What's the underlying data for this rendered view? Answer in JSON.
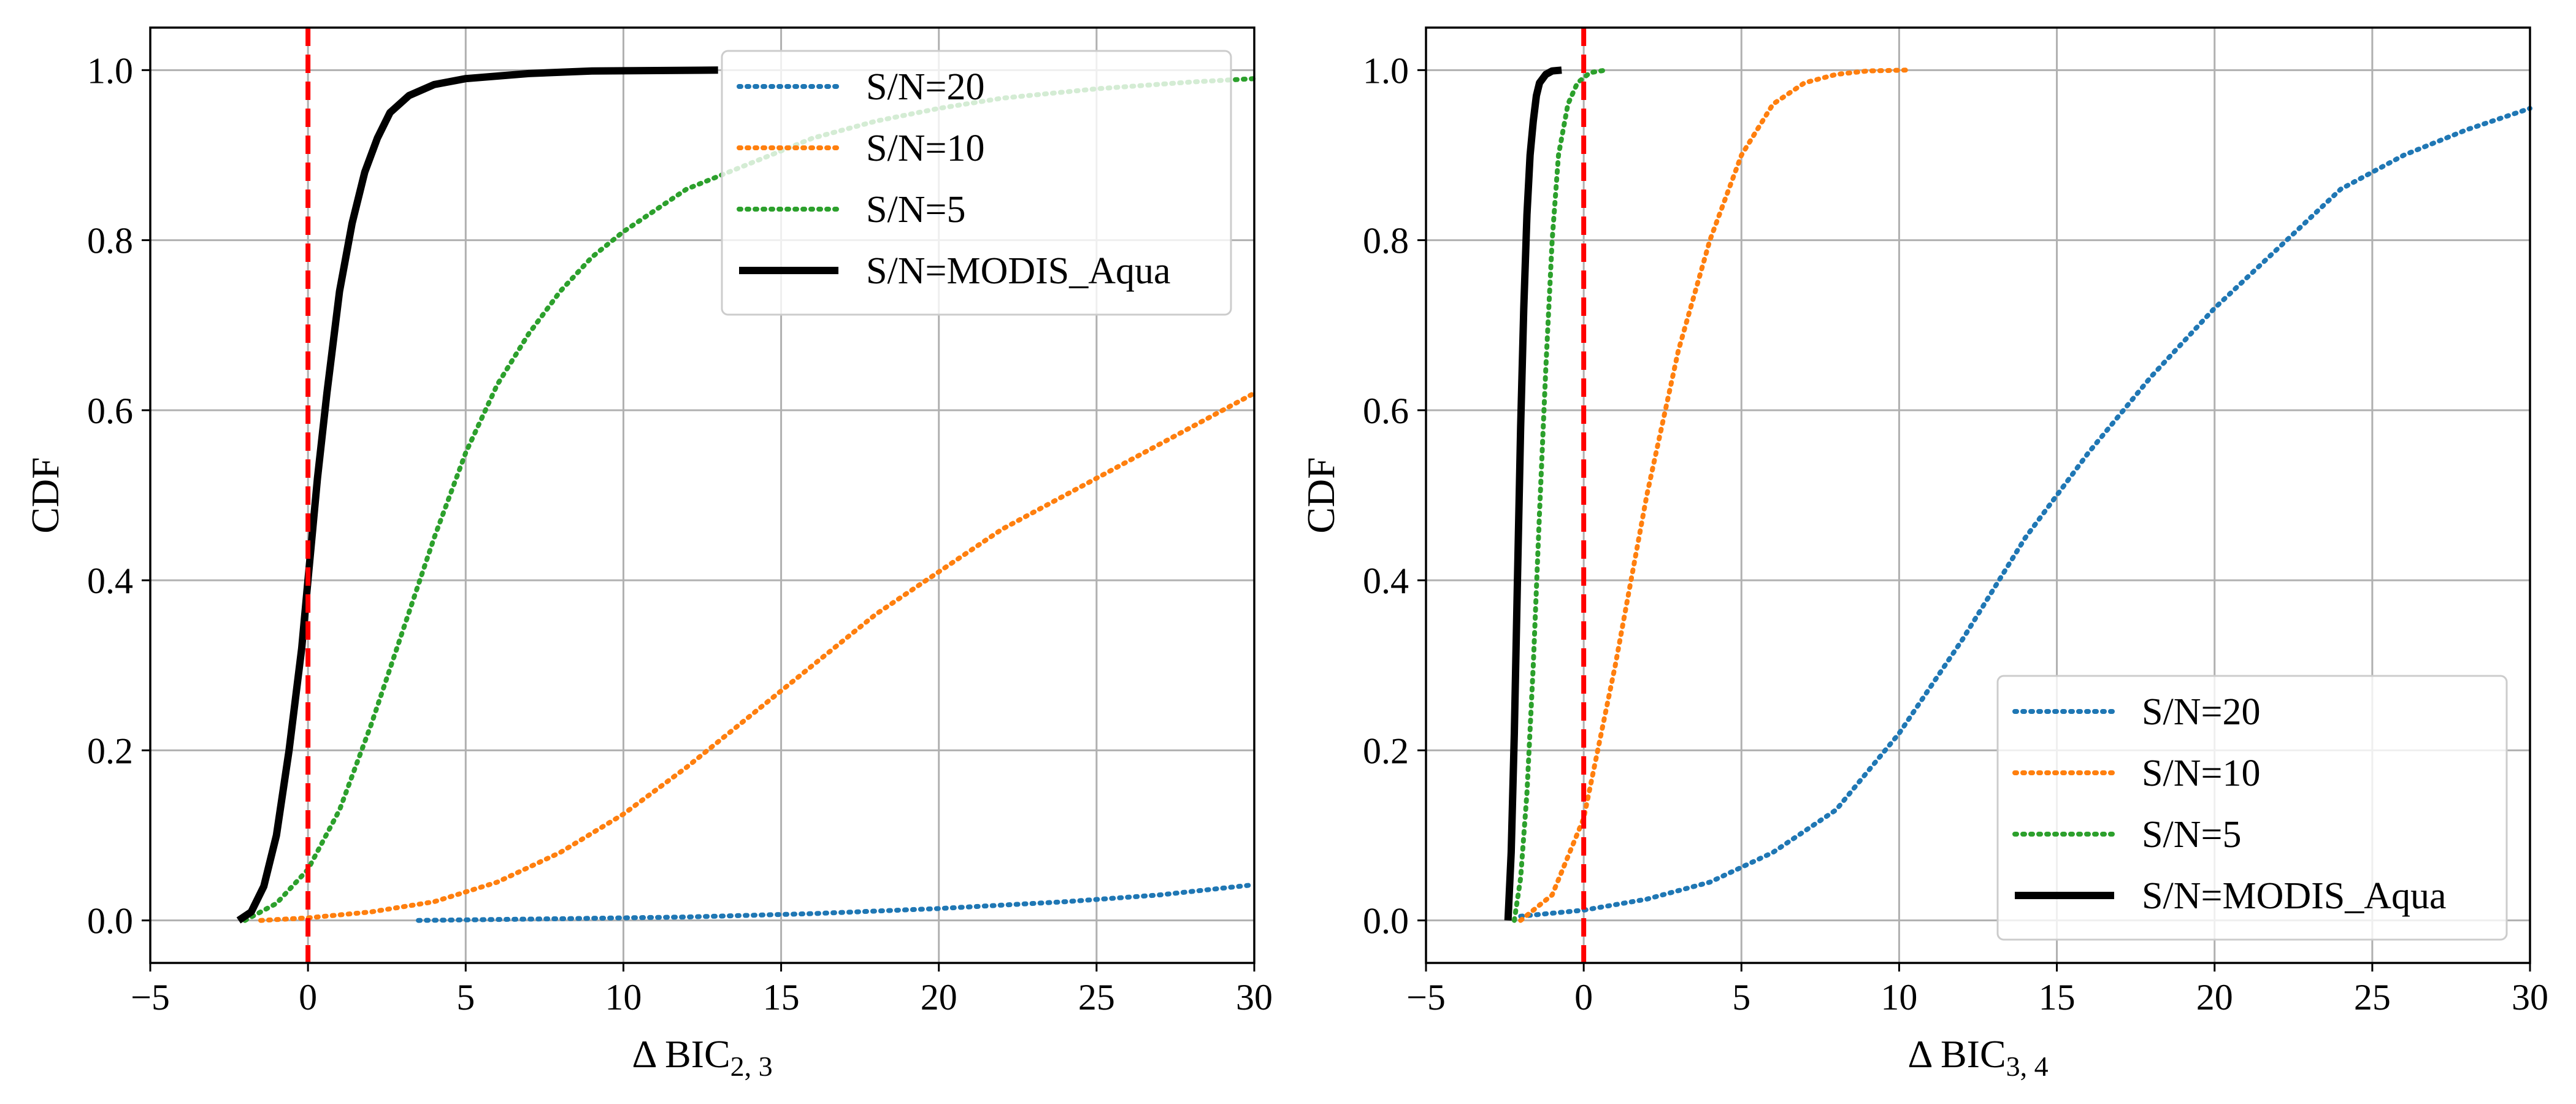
{
  "chart_data": [
    {
      "type": "line",
      "title": "",
      "xlabel_main": "Δ BIC",
      "xlabel_sub": "2, 3",
      "ylabel": "CDF",
      "xlim": [
        -5,
        30
      ],
      "ylim": [
        -0.05,
        1.05
      ],
      "xticks": [
        -5,
        0,
        5,
        10,
        15,
        20,
        25,
        30
      ],
      "yticks": [
        0.0,
        0.2,
        0.4,
        0.6,
        0.8,
        1.0
      ],
      "xtick_labels": [
        "−5",
        "0",
        "5",
        "10",
        "15",
        "20",
        "25",
        "30"
      ],
      "ytick_labels": [
        "0.0",
        "0.2",
        "0.4",
        "0.6",
        "0.8",
        "1.0"
      ],
      "grid": true,
      "legend_position": "top-right",
      "vline": {
        "x": 0,
        "color": "#ff0000",
        "style": "dashed"
      },
      "series": [
        {
          "name": "S/N=20",
          "color": "#1f77b4",
          "style": "dotted",
          "x": [
            3.5,
            8,
            12,
            16,
            20,
            24,
            27,
            30
          ],
          "y": [
            0.0,
            0.002,
            0.004,
            0.008,
            0.014,
            0.022,
            0.03,
            0.042
          ]
        },
        {
          "name": "S/N=10",
          "color": "#ff7f0e",
          "style": "dotted",
          "x": [
            -1.5,
            0,
            2,
            4,
            6,
            8,
            10,
            12,
            14,
            16,
            18,
            20,
            22,
            24,
            26,
            28,
            30
          ],
          "y": [
            0.0,
            0.003,
            0.01,
            0.022,
            0.045,
            0.08,
            0.125,
            0.18,
            0.24,
            0.3,
            0.36,
            0.41,
            0.46,
            0.5,
            0.54,
            0.58,
            0.62
          ]
        },
        {
          "name": "S/N=5",
          "color": "#2ca02c",
          "style": "dotted",
          "x": [
            -2,
            -1,
            0,
            1,
            2,
            3,
            4,
            5,
            6,
            7,
            8,
            9,
            10,
            12,
            14,
            16,
            18,
            20,
            22,
            25,
            28,
            30
          ],
          "y": [
            0.0,
            0.02,
            0.06,
            0.13,
            0.23,
            0.34,
            0.45,
            0.55,
            0.63,
            0.69,
            0.74,
            0.78,
            0.81,
            0.86,
            0.89,
            0.92,
            0.94,
            0.955,
            0.967,
            0.978,
            0.986,
            0.99
          ]
        },
        {
          "name": "S/N=MODIS_Aqua",
          "color": "#000000",
          "style": "solid",
          "x": [
            -2.2,
            -1.8,
            -1.4,
            -1.0,
            -0.6,
            -0.2,
            0.0,
            0.3,
            0.6,
            1.0,
            1.4,
            1.8,
            2.2,
            2.6,
            3.2,
            4.0,
            5.0,
            7.0,
            9.0,
            13.0
          ],
          "y": [
            0.0,
            0.01,
            0.04,
            0.1,
            0.2,
            0.32,
            0.4,
            0.52,
            0.62,
            0.74,
            0.82,
            0.88,
            0.92,
            0.95,
            0.97,
            0.983,
            0.99,
            0.996,
            0.999,
            1.0
          ]
        }
      ]
    },
    {
      "type": "line",
      "title": "",
      "xlabel_main": "Δ BIC",
      "xlabel_sub": "3, 4",
      "ylabel": "CDF",
      "xlim": [
        -5,
        30
      ],
      "ylim": [
        -0.05,
        1.05
      ],
      "xticks": [
        -5,
        0,
        5,
        10,
        15,
        20,
        25,
        30
      ],
      "yticks": [
        0.0,
        0.2,
        0.4,
        0.6,
        0.8,
        1.0
      ],
      "xtick_labels": [
        "−5",
        "0",
        "5",
        "10",
        "15",
        "20",
        "25",
        "30"
      ],
      "ytick_labels": [
        "0.0",
        "0.2",
        "0.4",
        "0.6",
        "0.8",
        "1.0"
      ],
      "grid": true,
      "legend_position": "bottom-right",
      "vline": {
        "x": 0,
        "color": "#ff0000",
        "style": "dashed"
      },
      "series": [
        {
          "name": "S/N=20",
          "color": "#1f77b4",
          "style": "dotted",
          "x": [
            -2,
            0,
            2,
            4,
            6,
            8,
            10,
            12,
            14,
            16,
            18,
            20,
            22,
            24,
            26,
            28,
            30
          ],
          "y": [
            0.005,
            0.012,
            0.025,
            0.045,
            0.08,
            0.13,
            0.22,
            0.33,
            0.45,
            0.55,
            0.64,
            0.72,
            0.79,
            0.86,
            0.9,
            0.93,
            0.955
          ]
        },
        {
          "name": "S/N=10",
          "color": "#ff7f0e",
          "style": "dotted",
          "x": [
            -2,
            -1,
            0,
            1,
            2,
            3,
            4,
            5,
            6,
            7,
            8,
            9,
            10.2
          ],
          "y": [
            0.0,
            0.03,
            0.12,
            0.3,
            0.5,
            0.67,
            0.8,
            0.9,
            0.96,
            0.985,
            0.995,
            0.999,
            1.0
          ]
        },
        {
          "name": "S/N=5",
          "color": "#2ca02c",
          "style": "dotted",
          "x": [
            -2.2,
            -2.0,
            -1.8,
            -1.6,
            -1.4,
            -1.2,
            -1.0,
            -0.8,
            -0.5,
            -0.2,
            0.2,
            0.7
          ],
          "y": [
            0.0,
            0.05,
            0.15,
            0.3,
            0.48,
            0.65,
            0.8,
            0.9,
            0.96,
            0.985,
            0.997,
            1.0
          ]
        },
        {
          "name": "S/N=MODIS_Aqua",
          "color": "#000000",
          "style": "solid",
          "x": [
            -2.4,
            -2.3,
            -2.2,
            -2.1,
            -2.0,
            -1.9,
            -1.8,
            -1.7,
            -1.6,
            -1.5,
            -1.4,
            -1.2,
            -1.0,
            -0.7
          ],
          "y": [
            0.0,
            0.08,
            0.22,
            0.4,
            0.58,
            0.72,
            0.83,
            0.9,
            0.94,
            0.97,
            0.985,
            0.995,
            0.999,
            1.0
          ]
        }
      ]
    }
  ]
}
